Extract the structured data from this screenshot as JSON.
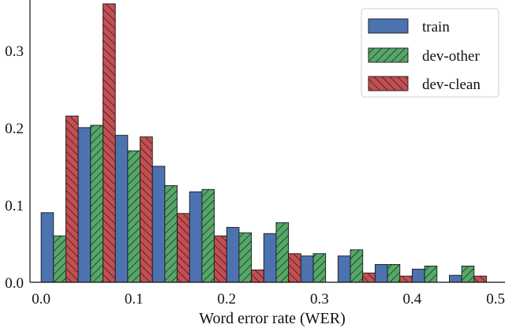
{
  "chart_data": {
    "type": "bar",
    "xlabel": "Word error rate (WER)",
    "ylabel": "",
    "xlim": [
      -0.012,
      0.5
    ],
    "ylim": [
      0,
      0.365
    ],
    "xticks": [
      0.0,
      0.1,
      0.2,
      0.3,
      0.4,
      0.5
    ],
    "xtick_labels": [
      "0.0",
      "0.1",
      "0.2",
      "0.3",
      "0.4",
      "0.5"
    ],
    "yticks": [
      0.0,
      0.1,
      0.2,
      0.3
    ],
    "ytick_labels": [
      "0.0",
      "0.1",
      "0.2",
      "0.3"
    ],
    "bin_width": 0.04,
    "bin_starts": [
      0.0,
      0.04,
      0.08,
      0.12,
      0.16,
      0.2,
      0.24,
      0.28,
      0.32,
      0.36,
      0.4,
      0.44,
      0.48
    ],
    "grid": false,
    "legend_position": "top-right",
    "series": [
      {
        "name": "train",
        "color": "#4C72B0",
        "hatch": "none",
        "values": [
          0.09,
          0.2,
          0.19,
          0.15,
          0.117,
          0.071,
          0.063,
          0.034,
          0.034,
          0.023,
          0.017,
          0.009,
          0.0
        ]
      },
      {
        "name": "dev-other",
        "color": "#55A868",
        "hatch": "forward",
        "values": [
          0.06,
          0.203,
          0.17,
          0.125,
          0.12,
          0.064,
          0.077,
          0.037,
          0.042,
          0.023,
          0.021,
          0.021,
          0.0
        ]
      },
      {
        "name": "dev-clean",
        "color": "#C44E52",
        "hatch": "back",
        "values": [
          0.215,
          0.36,
          0.188,
          0.089,
          0.06,
          0.016,
          0.037,
          0.0,
          0.012,
          0.008,
          0.0,
          0.008,
          0.0
        ]
      }
    ]
  }
}
